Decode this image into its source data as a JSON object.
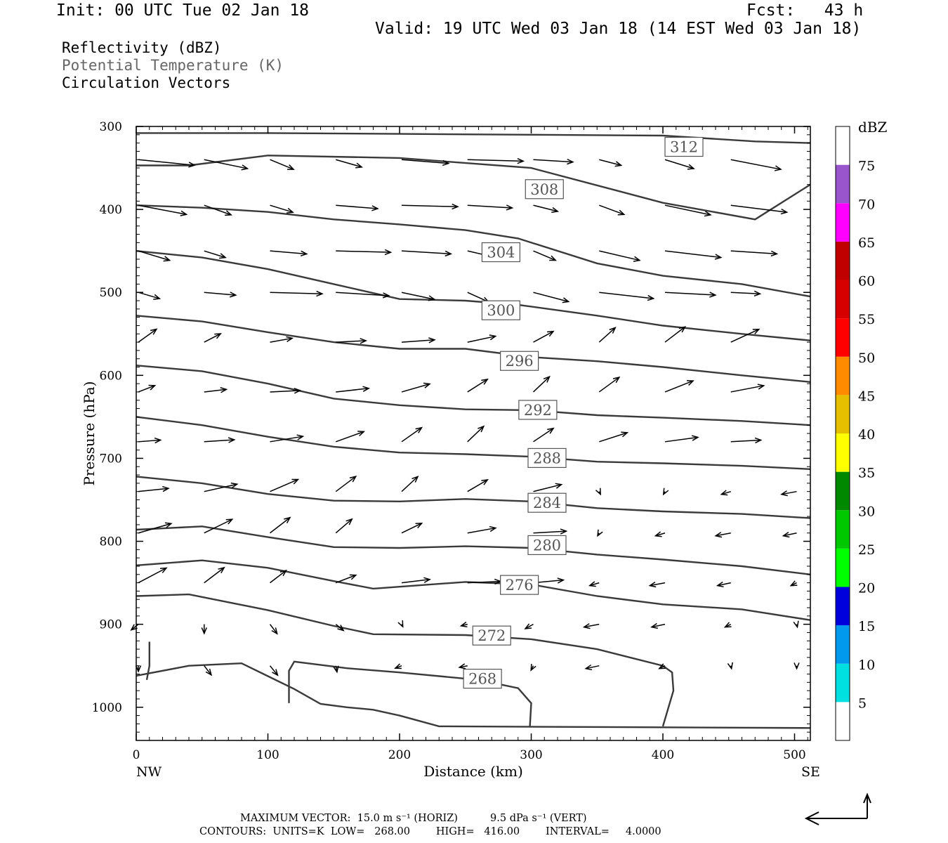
{
  "header": {
    "init": "Init: 00 UTC Tue 02 Jan 18",
    "fcst": "Fcst:   43 h",
    "valid": "Valid: 19 UTC Wed 03 Jan 18 (14 EST Wed 03 Jan 18)"
  },
  "fields": {
    "reflectivity": "Reflectivity (dBZ)",
    "theta": "Potential Temperature (K)",
    "vectors": "Circulation Vectors"
  },
  "footer": {
    "max_vector": "MAXIMUM VECTOR:  15.0 m s⁻¹ (HORIZ)          9.5 dPa s⁻¹ (VERT)",
    "contours": "CONTOURS:  UNITS=K  LOW=   268.00        HIGH=   416.00        INTERVAL=     4.0000"
  },
  "colors": {
    "contour": "#3a3a3a",
    "vector": "#000000",
    "dbz_scale": [
      "#ffffff",
      "#00e0e0",
      "#0099ee",
      "#0000dd",
      "#00ff00",
      "#00c800",
      "#008800",
      "#ffff00",
      "#e6c000",
      "#ff8c00",
      "#ff0000",
      "#d60000",
      "#c00000",
      "#ff00ff",
      "#9955cc",
      "#ffffff"
    ]
  },
  "chart_data": {
    "type": "line",
    "xlabel": "Distance (km)",
    "ylabel": "Pressure (hPa)",
    "xlim": [
      0,
      512
    ],
    "ylim": [
      1040,
      300
    ],
    "x_ticks": [
      0,
      100,
      200,
      300,
      400,
      500
    ],
    "y_ticks": [
      300,
      400,
      500,
      600,
      700,
      800,
      900,
      1000
    ],
    "x_end_labels": [
      "NW",
      "SE"
    ],
    "colorbar": {
      "label": "dBZ",
      "ticks": [
        5,
        10,
        15,
        20,
        25,
        30,
        35,
        40,
        45,
        50,
        55,
        60,
        65,
        70,
        75
      ]
    },
    "contour_labels": [
      {
        "value": "312",
        "x": 416,
        "p": 325
      },
      {
        "value": "308",
        "x": 310,
        "p": 376
      },
      {
        "value": "304",
        "x": 277,
        "p": 452
      },
      {
        "value": "300",
        "x": 277,
        "p": 522
      },
      {
        "value": "296",
        "x": 291,
        "p": 583
      },
      {
        "value": "292",
        "x": 305,
        "p": 642
      },
      {
        "value": "288",
        "x": 312,
        "p": 700
      },
      {
        "value": "284",
        "x": 312,
        "p": 754
      },
      {
        "value": "280",
        "x": 312,
        "p": 805
      },
      {
        "value": "276",
        "x": 291,
        "p": 853
      },
      {
        "value": "272",
        "x": 270,
        "p": 914
      },
      {
        "value": "268",
        "x": 263,
        "p": 966
      }
    ],
    "series": [
      {
        "values": [
          [
            0,
            308
          ],
          [
            100,
            308
          ],
          [
            200,
            309
          ],
          [
            300,
            310
          ],
          [
            400,
            311
          ],
          [
            470,
            318
          ],
          [
            512,
            320
          ]
        ]
      },
      {
        "values": [
          [
            0,
            347
          ],
          [
            40,
            347
          ],
          [
            100,
            335
          ],
          [
            200,
            338
          ],
          [
            300,
            350
          ],
          [
            400,
            392
          ],
          [
            470,
            412
          ],
          [
            512,
            370
          ]
        ]
      },
      {
        "values": [
          [
            0,
            395
          ],
          [
            50,
            398
          ],
          [
            100,
            403
          ],
          [
            150,
            412
          ],
          [
            200,
            418
          ],
          [
            250,
            425
          ],
          [
            290,
            435
          ],
          [
            350,
            465
          ],
          [
            400,
            480
          ],
          [
            460,
            490
          ],
          [
            512,
            505
          ]
        ]
      },
      {
        "values": [
          [
            0,
            450
          ],
          [
            50,
            458
          ],
          [
            100,
            472
          ],
          [
            150,
            490
          ],
          [
            200,
            508
          ],
          [
            250,
            510
          ],
          [
            290,
            515
          ],
          [
            350,
            528
          ],
          [
            400,
            540
          ],
          [
            460,
            550
          ],
          [
            512,
            558
          ]
        ]
      },
      {
        "values": [
          [
            0,
            528
          ],
          [
            50,
            535
          ],
          [
            100,
            548
          ],
          [
            150,
            560
          ],
          [
            200,
            568
          ],
          [
            250,
            568
          ],
          [
            300,
            578
          ],
          [
            350,
            583
          ],
          [
            400,
            590
          ],
          [
            460,
            600
          ],
          [
            512,
            608
          ]
        ]
      },
      {
        "values": [
          [
            0,
            588
          ],
          [
            50,
            595
          ],
          [
            100,
            610
          ],
          [
            150,
            628
          ],
          [
            200,
            636
          ],
          [
            250,
            641
          ],
          [
            300,
            642
          ],
          [
            350,
            648
          ],
          [
            400,
            651
          ],
          [
            460,
            655
          ],
          [
            512,
            660
          ]
        ]
      },
      {
        "values": [
          [
            0,
            650
          ],
          [
            50,
            660
          ],
          [
            100,
            674
          ],
          [
            150,
            686
          ],
          [
            200,
            693
          ],
          [
            250,
            695
          ],
          [
            300,
            698
          ],
          [
            350,
            704
          ],
          [
            400,
            706
          ],
          [
            460,
            709
          ],
          [
            512,
            713
          ]
        ]
      },
      {
        "values": [
          [
            0,
            722
          ],
          [
            50,
            730
          ],
          [
            100,
            743
          ],
          [
            150,
            751
          ],
          [
            200,
            752
          ],
          [
            250,
            749
          ],
          [
            300,
            752
          ],
          [
            350,
            760
          ],
          [
            400,
            764
          ],
          [
            460,
            767
          ],
          [
            512,
            772
          ]
        ]
      },
      {
        "values": [
          [
            0,
            786
          ],
          [
            50,
            782
          ],
          [
            100,
            795
          ],
          [
            150,
            807
          ],
          [
            200,
            808
          ],
          [
            250,
            806
          ],
          [
            300,
            808
          ],
          [
            350,
            816
          ],
          [
            400,
            822
          ],
          [
            460,
            830
          ],
          [
            512,
            840
          ]
        ]
      },
      {
        "values": [
          [
            0,
            829
          ],
          [
            50,
            823
          ],
          [
            100,
            832
          ],
          [
            150,
            848
          ],
          [
            180,
            857
          ],
          [
            250,
            849
          ],
          [
            300,
            852
          ],
          [
            350,
            866
          ],
          [
            400,
            876
          ],
          [
            460,
            882
          ],
          [
            512,
            895
          ]
        ]
      },
      {
        "values": [
          [
            0,
            866
          ],
          [
            40,
            864
          ],
          [
            100,
            883
          ],
          [
            150,
            902
          ],
          [
            180,
            912
          ],
          [
            250,
            913
          ],
          [
            300,
            918
          ],
          [
            350,
            930
          ],
          [
            400,
            950
          ],
          [
            407,
            958
          ],
          [
            408,
            980
          ],
          [
            400,
            1023
          ]
        ]
      },
      {
        "values": [
          [
            0,
            962
          ],
          [
            40,
            950
          ],
          [
            80,
            947
          ],
          [
            120,
            978
          ],
          [
            140,
            996
          ],
          [
            160,
            1000
          ],
          [
            180,
            1003
          ],
          [
            200,
            1010
          ],
          [
            230,
            1023
          ],
          [
            512,
            1025
          ]
        ]
      },
      {
        "values": [
          [
            10,
            921
          ],
          [
            10,
            950
          ],
          [
            8,
            967
          ]
        ]
      },
      {
        "values": [
          [
            116,
            995
          ],
          [
            116,
            956
          ],
          [
            120,
            945
          ],
          [
            160,
            953
          ],
          [
            200,
            958
          ],
          [
            260,
            967
          ],
          [
            290,
            977
          ],
          [
            300,
            995
          ],
          [
            299,
            1023
          ]
        ]
      }
    ],
    "vectors_sample": {
      "columns_km": [
        0,
        50,
        100,
        150,
        200,
        250,
        300,
        350,
        400,
        450,
        500
      ],
      "levels_hPa": [
        340,
        395,
        450,
        500,
        560,
        620,
        680,
        740,
        790,
        850,
        900,
        950
      ]
    }
  }
}
